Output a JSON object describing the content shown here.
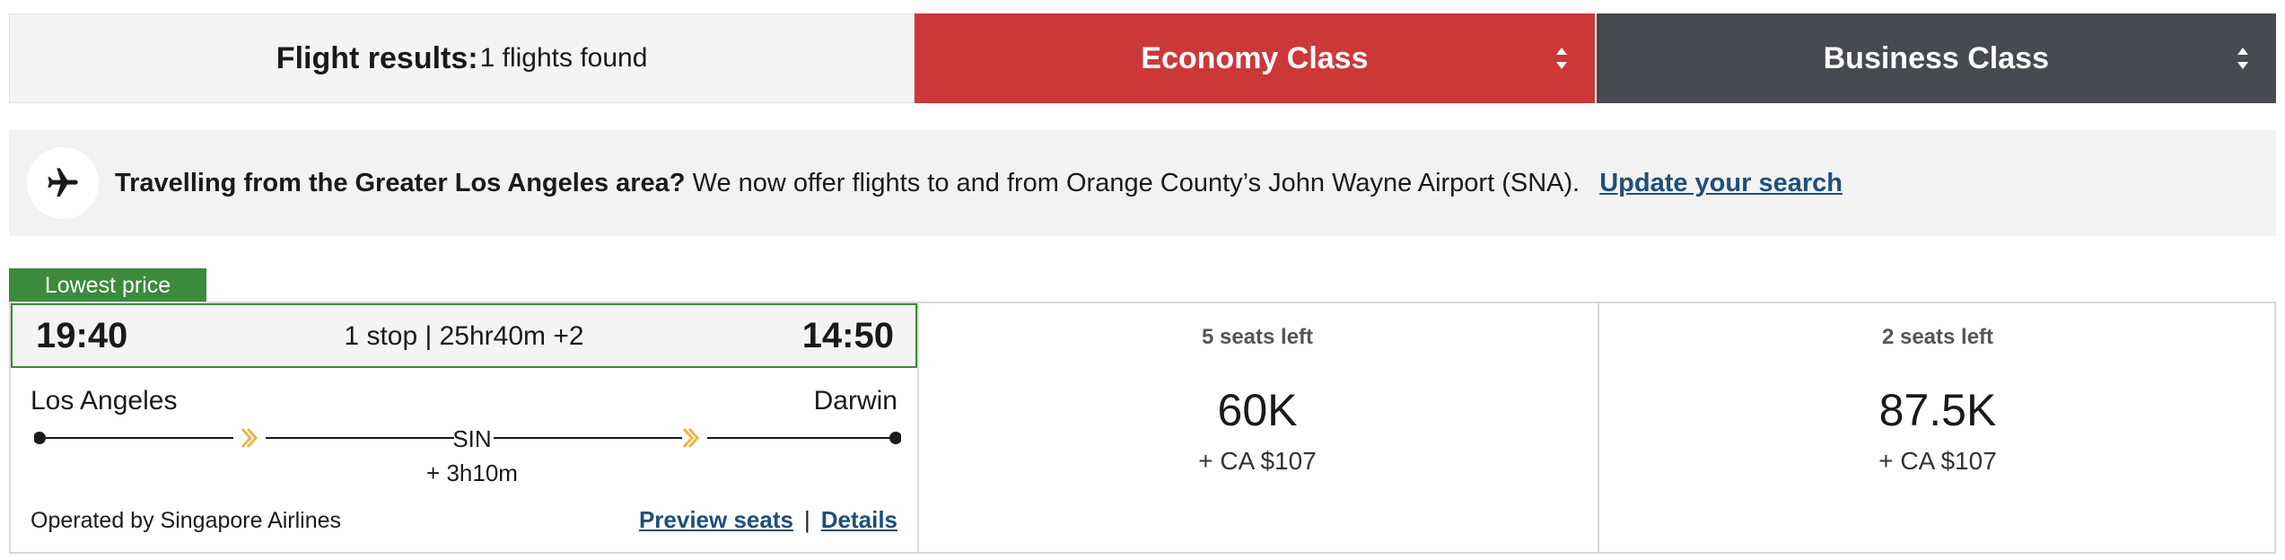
{
  "header": {
    "results_label": "Flight results:",
    "results_count": "1 flights found",
    "economy_label": "Economy Class",
    "business_label": "Business Class"
  },
  "banner": {
    "bold_text": "Travelling from the Greater Los Angeles area?",
    "text": "We now offer flights to and from Orange County’s John Wayne Airport (SNA).",
    "link": "Update your search"
  },
  "flight": {
    "badge": "Lowest price",
    "departure_time": "19:40",
    "arrival_time": "14:50",
    "duration": "1 stop | 25hr40m +2",
    "origin": "Los Angeles",
    "destination": "Darwin",
    "stop_code": "SIN",
    "layover": "+ 3h10m",
    "operated_by": "Operated by Singapore Airlines",
    "preview_seats": "Preview seats",
    "separator": "|",
    "details": "Details"
  },
  "fares": {
    "economy": {
      "seats": "5 seats left",
      "points": "60K",
      "tax": "+ CA $107"
    },
    "business": {
      "seats": "2 seats left",
      "points": "87.5K",
      "tax": "+ CA $107"
    }
  },
  "colors": {
    "economy": "#cc3838",
    "business": "#474a50",
    "lowest_price": "#3c8a3c",
    "link": "#1f4f7a",
    "airline_mark": "#e8b64a"
  },
  "icons": [
    "sort-icon",
    "plane-icon",
    "airline-logo-icon"
  ]
}
